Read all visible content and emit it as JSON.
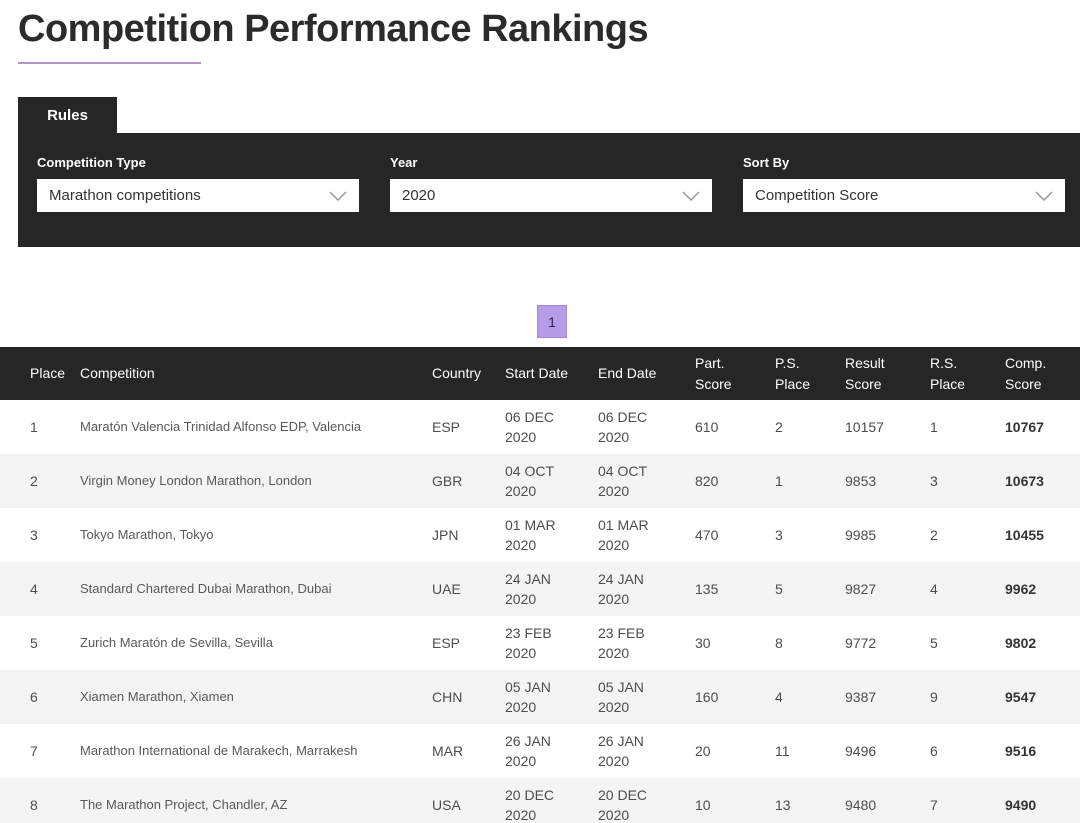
{
  "page": {
    "title": "Competition Performance Rankings"
  },
  "tabs": {
    "rules_label": "Rules"
  },
  "filters": {
    "competition_type": {
      "label": "Competition Type",
      "value": "Marathon competitions"
    },
    "year": {
      "label": "Year",
      "value": "2020"
    },
    "sort_by": {
      "label": "Sort By",
      "value": "Competition Score"
    }
  },
  "pagination": {
    "current_page": "1"
  },
  "colors": {
    "dark_bar": "#262626",
    "accent_purple": "#b69ce8",
    "title_underline": "#b592c4",
    "alt_row": "#f4f4f4"
  },
  "table": {
    "columns": [
      {
        "key": "place",
        "label": "Place"
      },
      {
        "key": "competition",
        "label": "Competition"
      },
      {
        "key": "country",
        "label": "Country"
      },
      {
        "key": "start_date",
        "label": "Start Date"
      },
      {
        "key": "end_date",
        "label": "End Date"
      },
      {
        "key": "part_score",
        "label": "Part.\nScore"
      },
      {
        "key": "ps_place",
        "label": "P.S.\nPlace"
      },
      {
        "key": "result_score",
        "label": "Result\nScore"
      },
      {
        "key": "rs_place",
        "label": "R.S.\nPlace"
      },
      {
        "key": "comp_score",
        "label": "Comp.\nScore"
      }
    ],
    "rows": [
      {
        "place": "1",
        "competition": "Maratón Valencia Trinidad Alfonso EDP, Valencia",
        "country": "ESP",
        "start_date": "06 DEC\n2020",
        "end_date": "06 DEC\n2020",
        "part_score": "610",
        "ps_place": "2",
        "result_score": "10157",
        "rs_place": "1",
        "comp_score": "10767"
      },
      {
        "place": "2",
        "competition": "Virgin Money London Marathon, London",
        "country": "GBR",
        "start_date": "04 OCT\n2020",
        "end_date": "04 OCT\n2020",
        "part_score": "820",
        "ps_place": "1",
        "result_score": "9853",
        "rs_place": "3",
        "comp_score": "10673"
      },
      {
        "place": "3",
        "competition": "Tokyo Marathon, Tokyo",
        "country": "JPN",
        "start_date": "01 MAR\n2020",
        "end_date": "01 MAR\n2020",
        "part_score": "470",
        "ps_place": "3",
        "result_score": "9985",
        "rs_place": "2",
        "comp_score": "10455"
      },
      {
        "place": "4",
        "competition": "Standard Chartered Dubai Marathon, Dubai",
        "country": "UAE",
        "start_date": "24 JAN\n2020",
        "end_date": "24 JAN\n2020",
        "part_score": "135",
        "ps_place": "5",
        "result_score": "9827",
        "rs_place": "4",
        "comp_score": "9962"
      },
      {
        "place": "5",
        "competition": "Zurich Maratón de Sevilla, Sevilla",
        "country": "ESP",
        "start_date": "23 FEB\n2020",
        "end_date": "23 FEB\n2020",
        "part_score": "30",
        "ps_place": "8",
        "result_score": "9772",
        "rs_place": "5",
        "comp_score": "9802"
      },
      {
        "place": "6",
        "competition": "Xiamen Marathon, Xiamen",
        "country": "CHN",
        "start_date": "05 JAN\n2020",
        "end_date": "05 JAN\n2020",
        "part_score": "160",
        "ps_place": "4",
        "result_score": "9387",
        "rs_place": "9",
        "comp_score": "9547"
      },
      {
        "place": "7",
        "competition": "Marathon International de Marakech, Marrakesh",
        "country": "MAR",
        "start_date": "26 JAN\n2020",
        "end_date": "26 JAN\n2020",
        "part_score": "20",
        "ps_place": "11",
        "result_score": "9496",
        "rs_place": "6",
        "comp_score": "9516"
      },
      {
        "place": "8",
        "competition": "The Marathon Project, Chandler, AZ",
        "country": "USA",
        "start_date": "20 DEC\n2020",
        "end_date": "20 DEC\n2020",
        "part_score": "10",
        "ps_place": "13",
        "result_score": "9480",
        "rs_place": "7",
        "comp_score": "9490"
      }
    ]
  }
}
